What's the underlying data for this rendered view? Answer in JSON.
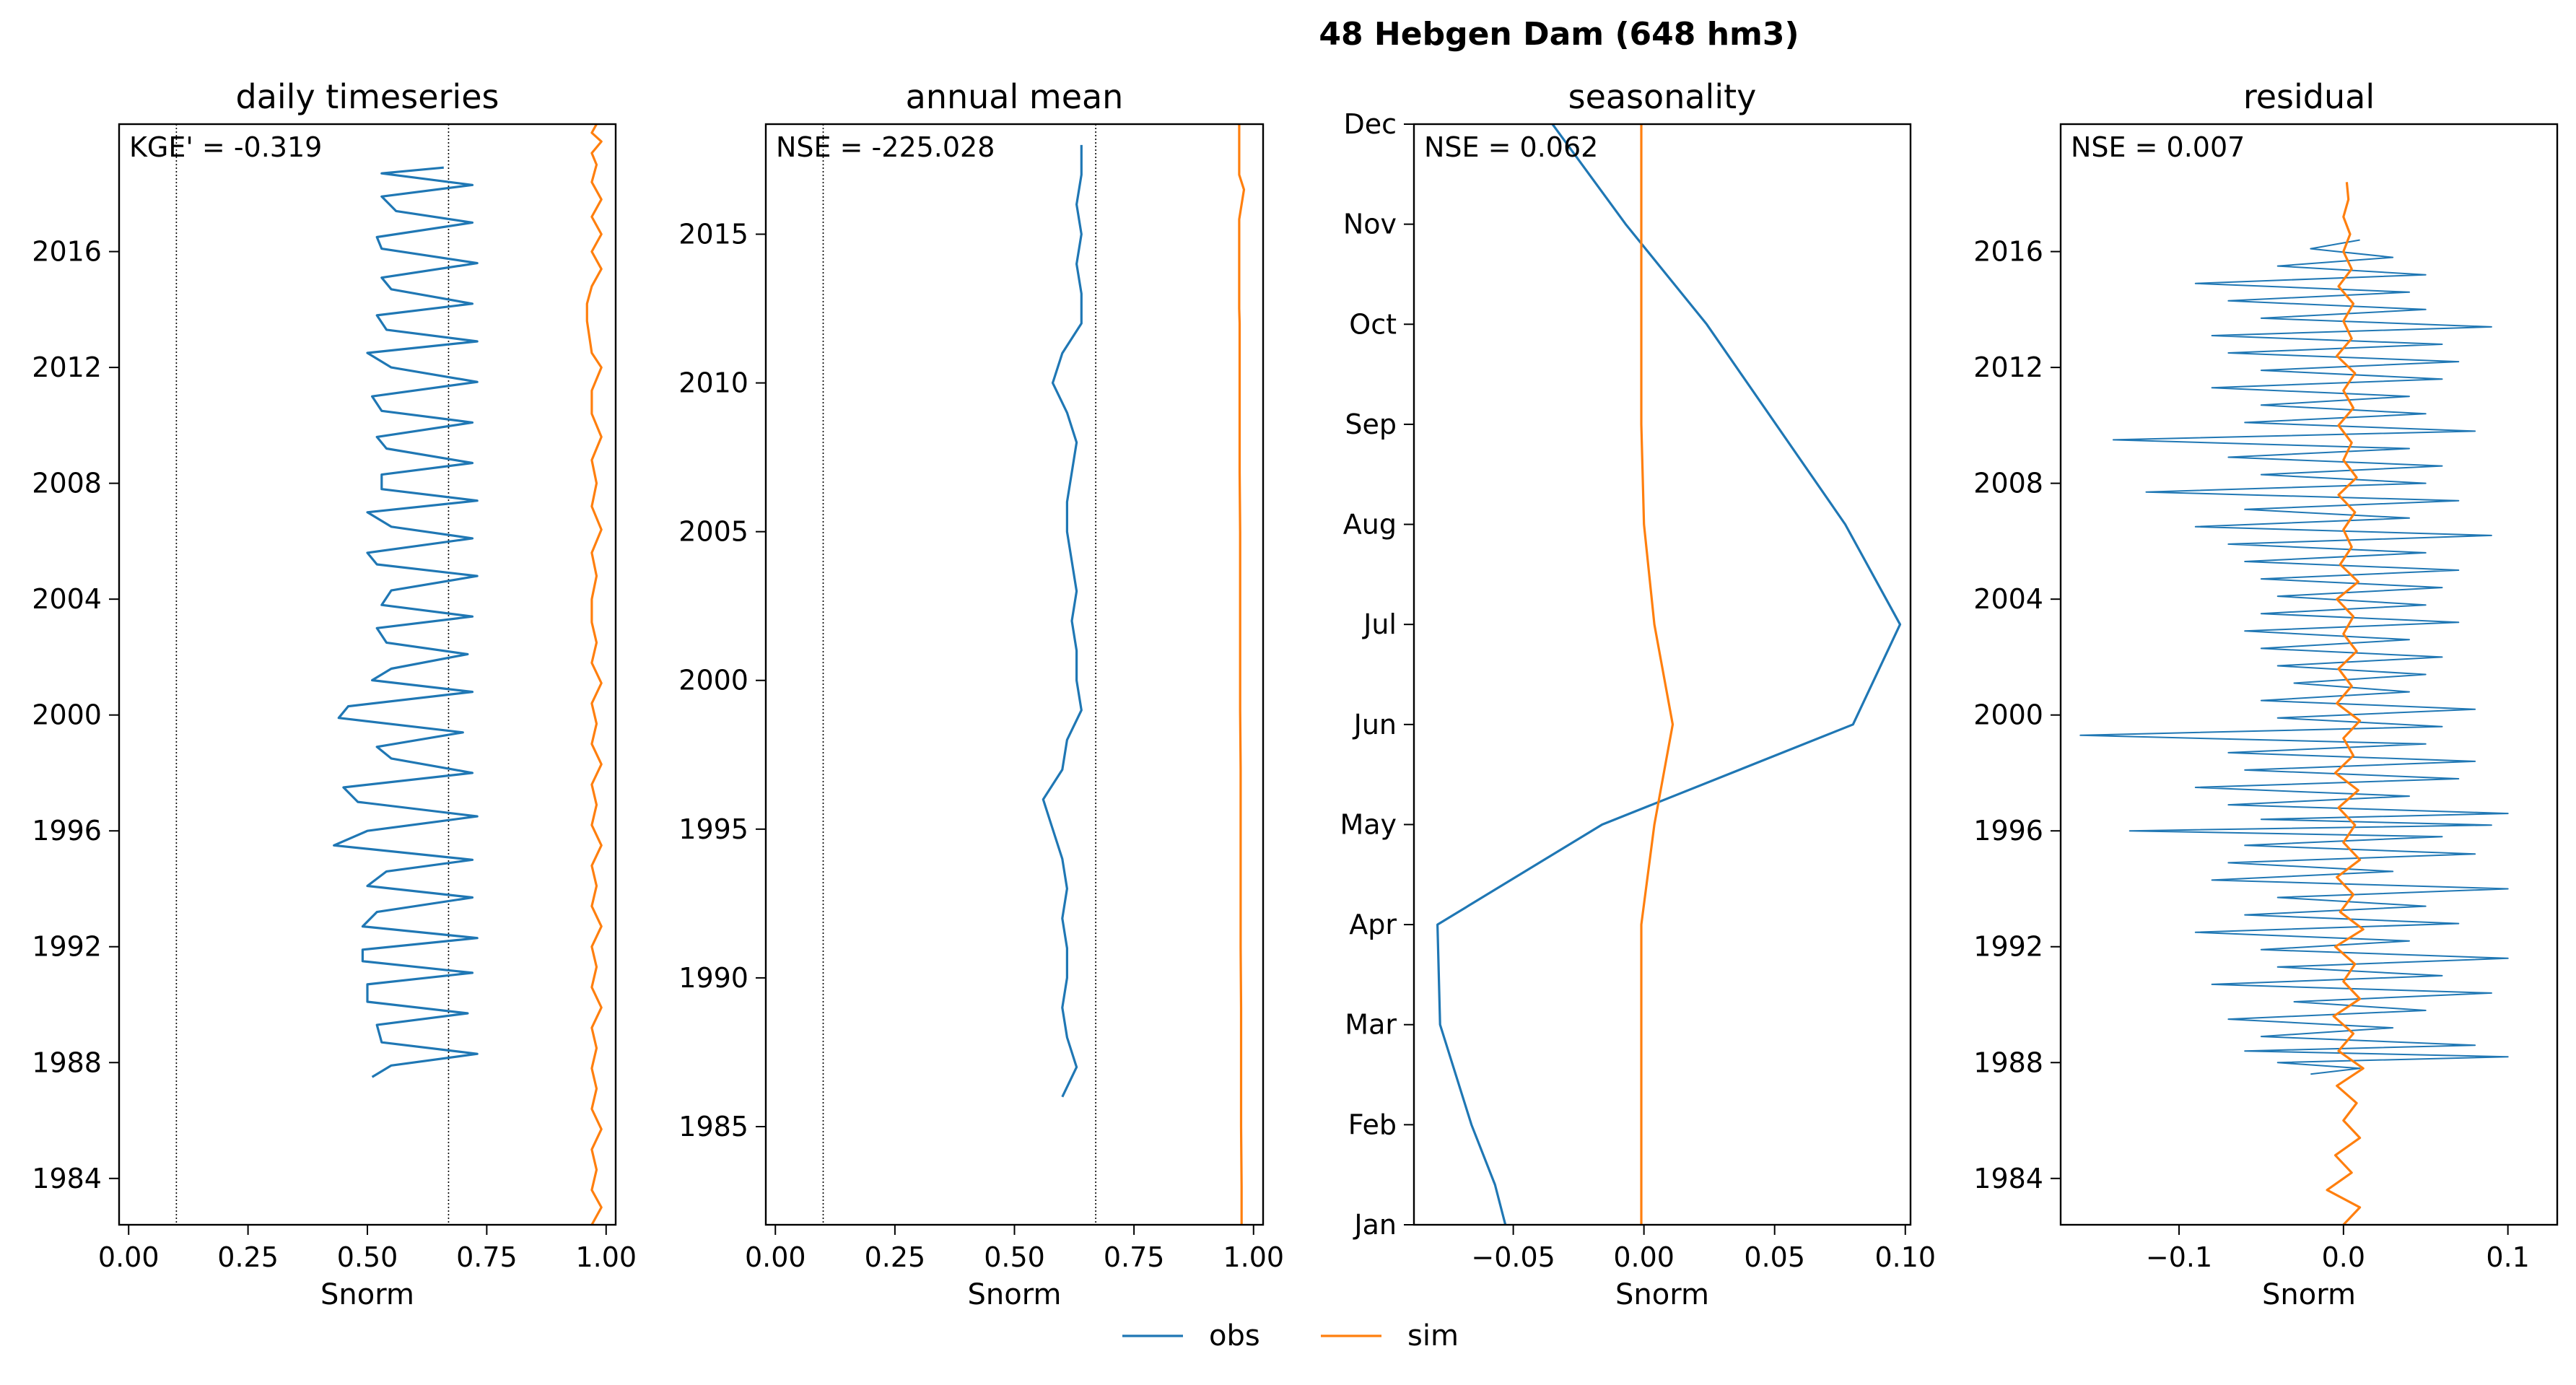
{
  "figure": {
    "suptitle": "48  Hebgen Dam (648 hm3)",
    "colors": {
      "obs": "#1f77b4",
      "sim": "#ff7f0e"
    },
    "legend": {
      "placement": "bottom-center",
      "entries": [
        {
          "key": "obs",
          "label": "obs"
        },
        {
          "key": "sim",
          "label": "sim"
        }
      ]
    }
  },
  "chart_data": [
    {
      "type": "line",
      "title": "daily timeseries",
      "xlabel": "Snorm",
      "ylabel": "",
      "metric": "KGE' = -0.319",
      "xlim": [
        -0.02,
        1.02
      ],
      "ylim": [
        2020.4,
        1982.4
      ],
      "x_ticks": [
        0.0,
        0.25,
        0.5,
        0.75,
        1.0
      ],
      "x_tick_labels": [
        "0.00",
        "0.25",
        "0.50",
        "0.75",
        "1.00"
      ],
      "y_ticks": [
        1984,
        1988,
        1992,
        1996,
        2000,
        2004,
        2008,
        2012,
        2016
      ],
      "y_tick_labels": [
        "1984",
        "1988",
        "1992",
        "1996",
        "2000",
        "2004",
        "2008",
        "2012",
        "2016"
      ],
      "reference_lines_x": [
        0.1,
        0.67
      ],
      "grid": false,
      "series": [
        {
          "name": "obs",
          "x": [
            0.51,
            0.55,
            0.73,
            0.53,
            0.52,
            0.71,
            0.5,
            0.5,
            0.72,
            0.49,
            0.49,
            0.73,
            0.49,
            0.52,
            0.72,
            0.5,
            0.54,
            0.72,
            0.43,
            0.5,
            0.73,
            0.48,
            0.45,
            0.72,
            0.55,
            0.52,
            0.7,
            0.44,
            0.46,
            0.72,
            0.51,
            0.55,
            0.71,
            0.54,
            0.52,
            0.72,
            0.53,
            0.55,
            0.73,
            0.52,
            0.5,
            0.72,
            0.55,
            0.5,
            0.73,
            0.53,
            0.53,
            0.72,
            0.54,
            0.52,
            0.72,
            0.53,
            0.51,
            0.73,
            0.55,
            0.5,
            0.73,
            0.54,
            0.52,
            0.72,
            0.55,
            0.53,
            0.73,
            0.53,
            0.52,
            0.72,
            0.56,
            0.53,
            0.72,
            0.53,
            0.66
          ],
          "y": [
            1987.5,
            1987.9,
            1988.3,
            1988.7,
            1989.3,
            1989.7,
            1990.1,
            1990.7,
            1991.1,
            1991.5,
            1991.9,
            1992.3,
            1992.7,
            1993.2,
            1993.7,
            1994.1,
            1994.6,
            1995.0,
            1995.5,
            1996.0,
            1996.5,
            1997.0,
            1997.5,
            1998.0,
            1998.5,
            1998.9,
            1999.4,
            1999.9,
            2000.3,
            2000.8,
            2001.2,
            2001.6,
            2002.1,
            2002.5,
            2003.0,
            2003.4,
            2003.8,
            2004.3,
            2004.8,
            2005.2,
            2005.6,
            2006.1,
            2006.5,
            2007.0,
            2007.4,
            2007.8,
            2008.3,
            2008.7,
            2009.2,
            2009.6,
            2010.1,
            2010.5,
            2011.0,
            2011.5,
            2012.0,
            2012.5,
            2012.9,
            2013.3,
            2013.8,
            2014.2,
            2014.7,
            2015.1,
            2015.6,
            2016.1,
            2016.5,
            2017.0,
            2017.4,
            2017.9,
            2018.3,
            2018.7,
            2018.9
          ]
        },
        {
          "name": "sim",
          "x": [
            0.97,
            0.99,
            0.97,
            0.98,
            0.97,
            0.99,
            0.97,
            0.98,
            0.97,
            0.98,
            0.97,
            0.99,
            0.97,
            0.98,
            0.97,
            0.99,
            0.97,
            0.98,
            0.97,
            0.99,
            0.97,
            0.98,
            0.97,
            0.99,
            0.97,
            0.98,
            0.97,
            0.99,
            0.97,
            0.98,
            0.97,
            0.97,
            0.98,
            0.97,
            0.99,
            0.97,
            0.98,
            0.97,
            0.99,
            0.97,
            0.97,
            0.99,
            0.97,
            0.96,
            0.96,
            0.97,
            0.99,
            0.97,
            0.99,
            0.97,
            0.99,
            0.97,
            0.98,
            0.97,
            0.99,
            0.97,
            0.98
          ],
          "y": [
            1982.4,
            1983.0,
            1983.6,
            1984.3,
            1985.0,
            1985.7,
            1986.4,
            1987.1,
            1987.8,
            1988.5,
            1989.2,
            1989.9,
            1990.6,
            1991.3,
            1992.0,
            1992.7,
            1993.4,
            1994.1,
            1994.8,
            1995.5,
            1996.2,
            1996.9,
            1997.6,
            1998.3,
            1999.0,
            1999.7,
            2000.4,
            2001.1,
            2001.8,
            2002.5,
            2003.2,
            2004.0,
            2004.8,
            2005.6,
            2006.4,
            2007.2,
            2008.0,
            2008.8,
            2009.6,
            2010.4,
            2011.2,
            2012.0,
            2012.5,
            2013.6,
            2014.2,
            2014.8,
            2015.4,
            2016.0,
            2016.6,
            2017.2,
            2017.8,
            2018.4,
            2019.0,
            2019.4,
            2019.8,
            2020.1,
            2020.4
          ]
        }
      ]
    },
    {
      "type": "line",
      "title": "annual mean",
      "xlabel": "Snorm",
      "ylabel": "",
      "metric": "NSE = -225.028",
      "xlim": [
        -0.02,
        1.02
      ],
      "ylim": [
        2018.7,
        1981.7
      ],
      "x_ticks": [
        0.0,
        0.25,
        0.5,
        0.75,
        1.0
      ],
      "x_tick_labels": [
        "0.00",
        "0.25",
        "0.50",
        "0.75",
        "1.00"
      ],
      "y_ticks": [
        1985,
        1990,
        1995,
        2000,
        2005,
        2010,
        2015
      ],
      "y_tick_labels": [
        "1985",
        "1990",
        "1995",
        "2000",
        "2005",
        "2010",
        "2015"
      ],
      "reference_lines_x": [
        0.1,
        0.67
      ],
      "grid": false,
      "series": [
        {
          "name": "obs",
          "x": [
            0.6,
            0.63,
            0.61,
            0.6,
            0.61,
            0.61,
            0.6,
            0.61,
            0.6,
            0.58,
            0.56,
            0.6,
            0.61,
            0.64,
            0.63,
            0.63,
            0.62,
            0.63,
            0.62,
            0.61,
            0.61,
            0.62,
            0.63,
            0.61,
            0.58,
            0.6,
            0.64,
            0.64,
            0.63,
            0.64,
            0.63,
            0.64,
            0.64
          ],
          "y": [
            1986,
            1987,
            1988,
            1989,
            1990,
            1991,
            1992,
            1993,
            1994,
            1995,
            1996,
            1997,
            1998,
            1999,
            2000,
            2001,
            2002,
            2003,
            2004,
            2005,
            2006,
            2007,
            2008,
            2009,
            2010,
            2011,
            2012,
            2013,
            2014,
            2015,
            2016,
            2017,
            2018
          ]
        },
        {
          "name": "sim",
          "x": [
            0.975,
            0.975,
            0.974,
            0.974,
            0.974,
            0.973,
            0.973,
            0.973,
            0.973,
            0.972,
            0.972,
            0.972,
            0.972,
            0.971,
            0.971,
            0.971,
            0.971,
            0.971,
            0.97,
            0.97,
            0.97,
            0.97,
            0.97,
            0.97,
            0.97,
            0.975,
            0.98,
            0.97,
            0.97,
            0.97,
            0.97,
            0.97,
            0.97
          ],
          "y": [
            1981.7,
            1983,
            1985,
            1987,
            1989,
            1991,
            1993,
            1995,
            1997,
            1999,
            2001,
            2003,
            2005,
            2007,
            2009,
            2010,
            2011,
            2012,
            2012.5,
            2013,
            2013.5,
            2014,
            2014.5,
            2015,
            2015.5,
            2016,
            2016.5,
            2017,
            2017.5,
            2018,
            2018.3,
            2018.5,
            2018.7
          ]
        }
      ]
    },
    {
      "type": "line",
      "title": "seasonality",
      "xlabel": "Snorm",
      "ylabel": "",
      "metric": "NSE = 0.062",
      "xlim": [
        -0.088,
        0.102
      ],
      "ylim": [
        11,
        0
      ],
      "x_ticks": [
        -0.05,
        0.0,
        0.05,
        0.1
      ],
      "x_tick_labels": [
        "−0.05",
        "0.00",
        "0.05",
        "0.10"
      ],
      "y_ticks": [
        0,
        1,
        2,
        3,
        4,
        5,
        6,
        7,
        8,
        9,
        10,
        11
      ],
      "y_tick_labels": [
        "Jan",
        "Feb",
        "Mar",
        "Apr",
        "May",
        "Jun",
        "Jul",
        "Aug",
        "Sep",
        "Oct",
        "Nov",
        "Dec"
      ],
      "reference_lines_x": [],
      "grid": false,
      "series": [
        {
          "name": "obs",
          "x": [
            -0.053,
            -0.057,
            -0.066,
            -0.078,
            -0.079,
            -0.016,
            0.08,
            0.098,
            0.077,
            0.024,
            -0.007,
            -0.035
          ],
          "y": [
            0,
            0.4,
            1,
            2,
            3,
            4,
            5,
            6,
            7,
            9,
            10,
            11
          ]
        },
        {
          "name": "sim",
          "x": [
            -0.001,
            -0.001,
            -0.001,
            -0.001,
            0.004,
            0.011,
            0.004,
            0.0,
            -0.001,
            -0.001,
            -0.001,
            -0.001
          ],
          "y": [
            0,
            1,
            2,
            3,
            4,
            5,
            6,
            7,
            8,
            9,
            10,
            11
          ]
        }
      ]
    },
    {
      "type": "line",
      "title": "residual",
      "xlabel": "Snorm",
      "ylabel": "",
      "metric": "NSE = 0.007",
      "xlim": [
        -0.172,
        0.13
      ],
      "ylim": [
        2020.4,
        1982.4
      ],
      "x_ticks": [
        -0.1,
        0.0,
        0.1
      ],
      "x_tick_labels": [
        "−0.1",
        "0.0",
        "0.1"
      ],
      "y_ticks": [
        1984,
        1988,
        1992,
        1996,
        2000,
        2004,
        2008,
        2012,
        2016
      ],
      "y_tick_labels": [
        "1984",
        "1988",
        "1992",
        "1996",
        "2000",
        "2004",
        "2008",
        "2012",
        "2016"
      ],
      "reference_lines_x": [],
      "grid": false,
      "series": [
        {
          "name": "obs",
          "x": [
            -0.02,
            0.01,
            -0.04,
            0.1,
            -0.06,
            0.08,
            -0.05,
            0.03,
            -0.07,
            0.05,
            -0.03,
            0.09,
            -0.08,
            0.06,
            -0.04,
            0.1,
            -0.05,
            0.04,
            -0.09,
            0.07,
            -0.06,
            0.05,
            -0.04,
            0.1,
            -0.08,
            0.03,
            -0.07,
            0.08,
            -0.06,
            0.06,
            -0.13,
            0.09,
            -0.05,
            0.1,
            -0.07,
            0.04,
            -0.09,
            0.07,
            -0.06,
            0.08,
            -0.07,
            0.05,
            -0.16,
            0.06,
            -0.04,
            0.08,
            -0.05,
            0.04,
            -0.03,
            0.05,
            -0.04,
            0.06,
            -0.05,
            0.04,
            -0.06,
            0.07,
            -0.05,
            0.05,
            -0.04,
            0.06,
            -0.05,
            0.07,
            -0.06,
            0.05,
            -0.07,
            0.09,
            -0.09,
            0.04,
            -0.06,
            0.07,
            -0.12,
            0.05,
            -0.05,
            0.06,
            -0.07,
            0.04,
            -0.14,
            0.08,
            -0.06,
            0.05,
            -0.05,
            0.04,
            -0.08,
            0.06,
            -0.05,
            0.07,
            -0.07,
            0.06,
            -0.08,
            0.09,
            -0.05,
            0.05,
            -0.07,
            0.04,
            -0.09,
            0.05,
            -0.04,
            0.03,
            -0.02,
            0.01
          ],
          "y": [
            1987.6,
            1987.8,
            1988.0,
            1988.2,
            1988.4,
            1988.6,
            1988.9,
            1989.2,
            1989.5,
            1989.8,
            1990.1,
            1990.4,
            1990.7,
            1991.0,
            1991.3,
            1991.6,
            1991.9,
            1992.2,
            1992.5,
            1992.8,
            1993.1,
            1993.4,
            1993.7,
            1994.0,
            1994.3,
            1994.6,
            1994.9,
            1995.2,
            1995.5,
            1995.8,
            1996.0,
            1996.2,
            1996.4,
            1996.6,
            1996.9,
            1997.2,
            1997.5,
            1997.8,
            1998.1,
            1998.4,
            1998.7,
            1999.0,
            1999.3,
            1999.6,
            1999.9,
            2000.2,
            2000.5,
            2000.8,
            2001.1,
            2001.4,
            2001.7,
            2002.0,
            2002.3,
            2002.6,
            2002.9,
            2003.2,
            2003.5,
            2003.8,
            2004.1,
            2004.4,
            2004.7,
            2005.0,
            2005.3,
            2005.6,
            2005.9,
            2006.2,
            2006.5,
            2006.8,
            2007.1,
            2007.4,
            2007.7,
            2008.0,
            2008.3,
            2008.6,
            2008.9,
            2009.2,
            2009.5,
            2009.8,
            2010.1,
            2010.4,
            2010.7,
            2011.0,
            2011.3,
            2011.6,
            2011.9,
            2012.2,
            2012.5,
            2012.8,
            2013.1,
            2013.4,
            2013.7,
            2014.0,
            2014.3,
            2014.6,
            2014.9,
            2015.2,
            2015.5,
            2015.8,
            2016.1,
            2016.4
          ]
        },
        {
          "name": "sim",
          "x": [
            0.0,
            0.01,
            -0.01,
            0.005,
            -0.005,
            0.01,
            0.0,
            0.008,
            -0.004,
            0.012,
            -0.003,
            0.006,
            -0.006,
            0.01,
            0.0,
            0.007,
            -0.005,
            0.012,
            -0.002,
            0.006,
            -0.004,
            0.01,
            0.0,
            0.007,
            -0.003,
            0.009,
            -0.005,
            0.006,
            0.0,
            0.01,
            -0.004,
            0.005,
            -0.003,
            0.008,
            0.0,
            0.006,
            -0.004,
            0.009,
            -0.002,
            0.005,
            0.0,
            0.007,
            -0.003,
            0.008,
            0.0,
            0.005,
            -0.003,
            0.006,
            0.0,
            0.007,
            -0.004,
            0.005,
            0.0,
            0.006,
            -0.003,
            0.005,
            0.0,
            0.004,
            0.0,
            0.003,
            0.002
          ],
          "y": [
            1982.4,
            1983.0,
            1983.6,
            1984.2,
            1984.8,
            1985.4,
            1986.0,
            1986.6,
            1987.2,
            1987.8,
            1988.4,
            1989.0,
            1989.6,
            1990.2,
            1990.8,
            1991.4,
            1992.0,
            1992.6,
            1993.2,
            1993.8,
            1994.4,
            1995.0,
            1995.6,
            1996.2,
            1996.8,
            1997.4,
            1998.0,
            1998.6,
            1999.2,
            1999.8,
            2000.4,
            2001.0,
            2001.6,
            2002.2,
            2002.8,
            2003.4,
            2004.0,
            2004.6,
            2005.2,
            2005.8,
            2006.4,
            2007.0,
            2007.6,
            2008.2,
            2008.8,
            2009.4,
            2010.0,
            2010.6,
            2011.2,
            2011.8,
            2012.4,
            2013.0,
            2013.6,
            2014.2,
            2014.8,
            2015.4,
            2016.0,
            2016.6,
            2017.2,
            2017.8,
            2018.4
          ]
        }
      ]
    }
  ]
}
